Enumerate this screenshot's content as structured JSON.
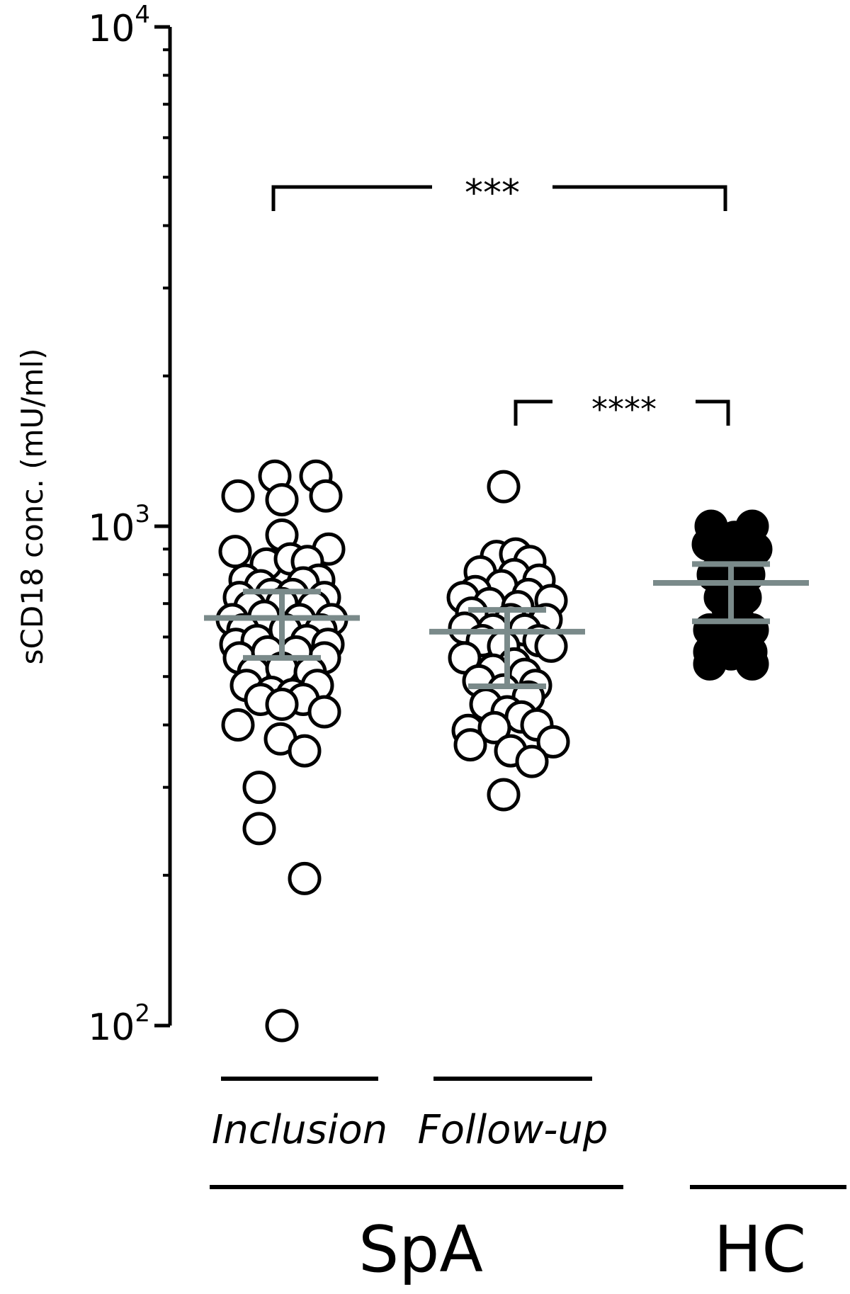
{
  "chart_data": {
    "type": "scatter",
    "ylabel": "sCD18 conc. (mU/ml)",
    "yscale": "log",
    "ylim": [
      100,
      10000
    ],
    "y_ticks": [
      {
        "value": 100,
        "base": "10",
        "exp": "2"
      },
      {
        "value": 1000,
        "base": "10",
        "exp": "3"
      },
      {
        "value": 10000,
        "base": "10",
        "exp": "4"
      }
    ],
    "categories": [
      "Inclusion",
      "Follow-up",
      "HC"
    ],
    "groups": [
      {
        "name": "SpA",
        "members": [
          "Inclusion",
          "Follow-up"
        ]
      },
      {
        "name": "HC",
        "members": [
          "HC"
        ]
      }
    ],
    "series": [
      {
        "category": "Inclusion",
        "marker": "open-circle",
        "mean": 655,
        "error_low": 545,
        "error_high": 740,
        "points": [
          [
            -0.1,
            1260
          ],
          [
            0.48,
            1260
          ],
          [
            -0.62,
            1150
          ],
          [
            0.0,
            1130
          ],
          [
            0.62,
            1150
          ],
          [
            0.0,
            960
          ],
          [
            -0.66,
            890
          ],
          [
            0.66,
            900
          ],
          [
            -0.22,
            840
          ],
          [
            0.12,
            860
          ],
          [
            0.36,
            850
          ],
          [
            -0.52,
            780
          ],
          [
            0.52,
            780
          ],
          [
            -0.3,
            760
          ],
          [
            0.3,
            770
          ],
          [
            -0.6,
            720
          ],
          [
            -0.15,
            730
          ],
          [
            0.15,
            730
          ],
          [
            0.6,
            720
          ],
          [
            -0.45,
            690
          ],
          [
            0.0,
            700
          ],
          [
            0.45,
            690
          ],
          [
            -0.7,
            650
          ],
          [
            -0.25,
            660
          ],
          [
            0.25,
            650
          ],
          [
            0.7,
            650
          ],
          [
            -0.55,
            620
          ],
          [
            0.05,
            620
          ],
          [
            0.55,
            620
          ],
          [
            -0.65,
            580
          ],
          [
            -0.35,
            590
          ],
          [
            0.35,
            590
          ],
          [
            0.65,
            580
          ],
          [
            -0.6,
            545
          ],
          [
            0.6,
            545
          ],
          [
            -0.2,
            560
          ],
          [
            0.2,
            560
          ],
          [
            -0.4,
            510
          ],
          [
            0.0,
            520
          ],
          [
            0.4,
            510
          ],
          [
            -0.5,
            480
          ],
          [
            0.5,
            480
          ],
          [
            -0.15,
            465
          ],
          [
            0.15,
            460
          ],
          [
            -0.3,
            450
          ],
          [
            0.3,
            450
          ],
          [
            0.0,
            440
          ],
          [
            0.6,
            425
          ],
          [
            -0.62,
            400
          ],
          [
            -0.02,
            375
          ],
          [
            0.32,
            355
          ],
          [
            -0.32,
            300
          ],
          [
            -0.32,
            248
          ],
          [
            0.32,
            197
          ],
          [
            0.0,
            100
          ]
        ]
      },
      {
        "category": "Follow-up",
        "marker": "open-circle",
        "mean": 615,
        "error_low": 478,
        "error_high": 680,
        "points": [
          [
            -0.05,
            1200
          ],
          [
            -0.15,
            870
          ],
          [
            0.12,
            880
          ],
          [
            0.32,
            850
          ],
          [
            -0.38,
            810
          ],
          [
            0.1,
            800
          ],
          [
            0.45,
            780
          ],
          [
            -0.08,
            760
          ],
          [
            -0.45,
            740
          ],
          [
            -0.62,
            720
          ],
          [
            0.3,
            730
          ],
          [
            0.62,
            710
          ],
          [
            -0.25,
            700
          ],
          [
            0.15,
            690
          ],
          [
            -0.5,
            670
          ],
          [
            0.05,
            650
          ],
          [
            0.55,
            650
          ],
          [
            -0.6,
            625
          ],
          [
            -0.2,
            620
          ],
          [
            0.25,
            620
          ],
          [
            -0.35,
            590
          ],
          [
            0.45,
            590
          ],
          [
            0.62,
            575
          ],
          [
            -0.05,
            575
          ],
          [
            -0.6,
            545
          ],
          [
            0.1,
            530
          ],
          [
            -0.2,
            515
          ],
          [
            0.25,
            505
          ],
          [
            -0.4,
            490
          ],
          [
            0.4,
            480
          ],
          [
            -0.05,
            470
          ],
          [
            0.3,
            455
          ],
          [
            -0.3,
            440
          ],
          [
            0.0,
            425
          ],
          [
            0.2,
            415
          ],
          [
            -0.55,
            390
          ],
          [
            -0.18,
            395
          ],
          [
            0.42,
            400
          ],
          [
            0.65,
            370
          ],
          [
            -0.52,
            365
          ],
          [
            0.05,
            355
          ],
          [
            0.35,
            338
          ],
          [
            -0.05,
            290
          ]
        ]
      },
      {
        "category": "HC",
        "marker": "filled-circle",
        "mean": 770,
        "error_low": 645,
        "error_high": 840,
        "points": [
          [
            -0.28,
            1000
          ],
          [
            0.3,
            1000
          ],
          [
            -0.32,
            920
          ],
          [
            0.05,
            950
          ],
          [
            0.35,
            900
          ],
          [
            0.0,
            870
          ],
          [
            -0.25,
            800
          ],
          [
            0.25,
            800
          ],
          [
            -0.15,
            720
          ],
          [
            0.2,
            720
          ],
          [
            -0.05,
            690
          ],
          [
            0.1,
            650
          ],
          [
            -0.3,
            620
          ],
          [
            0.3,
            620
          ],
          [
            0.05,
            600
          ],
          [
            -0.3,
            560
          ],
          [
            0.28,
            560
          ],
          [
            0.0,
            555
          ],
          [
            -0.3,
            530
          ],
          [
            0.3,
            530
          ]
        ]
      }
    ],
    "significance": [
      {
        "from": "Inclusion",
        "to": "HC",
        "label": "***"
      },
      {
        "from": "Follow-up",
        "to": "HC",
        "label": "****"
      }
    ],
    "colors": {
      "points": "#000000",
      "error_bars": "#7a8a8a"
    }
  }
}
